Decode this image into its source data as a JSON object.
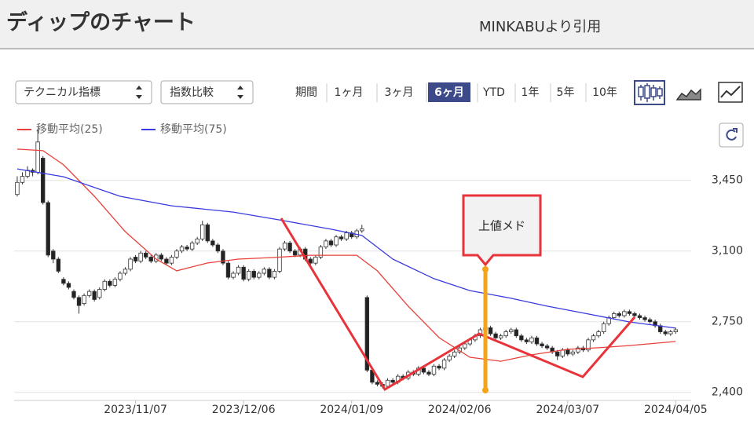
{
  "header": {
    "title": "ディップのチャート",
    "source": "MINKABUより引用"
  },
  "controls": {
    "dropdowns": [
      "テクニカル指標",
      "指数比較"
    ],
    "periods": [
      "期間",
      "1ヶ月",
      "3ヶ月",
      "6ヶ月",
      "YTD",
      "1年",
      "5年",
      "10年"
    ],
    "active_period": 3
  },
  "chart_data": {
    "type": "candlestick",
    "annotation": "上値メド",
    "ylim": [
      2360,
      3760
    ],
    "yticks": [
      {
        "value": 2400,
        "label": "2,400"
      },
      {
        "value": 2750,
        "label": "2,750"
      },
      {
        "value": 3100,
        "label": "3,100"
      },
      {
        "value": 3450,
        "label": "3,450"
      }
    ],
    "xlim": [
      -0.6,
      131
    ],
    "xticks": [
      {
        "value": 23,
        "label": "2023/11/07"
      },
      {
        "value": 44,
        "label": "2023/12/06"
      },
      {
        "value": 65,
        "label": "2024/01/09"
      },
      {
        "value": 86,
        "label": "2024/02/06"
      },
      {
        "value": 107,
        "label": "2024/03/07"
      },
      {
        "value": 128,
        "label": "2024/04/05"
      }
    ],
    "grid": true,
    "candles": [
      [
        3380,
        3470,
        3370,
        3440
      ],
      [
        3440,
        3490,
        3430,
        3470
      ],
      [
        3470,
        3520,
        3460,
        3500
      ],
      [
        3500,
        3510,
        3470,
        3490
      ],
      [
        3490,
        3700,
        3480,
        3640
      ],
      [
        3560,
        3570,
        3330,
        3340
      ],
      [
        3340,
        3350,
        3070,
        3080
      ],
      [
        3100,
        3110,
        3040,
        3060
      ],
      [
        3060,
        3070,
        2990,
        3000
      ],
      [
        2960,
        2970,
        2930,
        2940
      ],
      [
        2940,
        2950,
        2910,
        2920
      ],
      [
        2900,
        2910,
        2860,
        2870
      ],
      [
        2870,
        2880,
        2790,
        2830
      ],
      [
        2840,
        2890,
        2830,
        2880
      ],
      [
        2880,
        2910,
        2870,
        2900
      ],
      [
        2900,
        2910,
        2850,
        2860
      ],
      [
        2870,
        2920,
        2860,
        2910
      ],
      [
        2910,
        2960,
        2900,
        2950
      ],
      [
        2950,
        2960,
        2920,
        2930
      ],
      [
        2930,
        2970,
        2920,
        2960
      ],
      [
        2960,
        3000,
        2950,
        2990
      ],
      [
        2990,
        3020,
        2980,
        3010
      ],
      [
        3010,
        3070,
        3000,
        3060
      ],
      [
        3070,
        3080,
        3040,
        3050
      ],
      [
        3050,
        3100,
        3040,
        3090
      ],
      [
        3090,
        3100,
        3060,
        3070
      ],
      [
        3070,
        3080,
        3040,
        3050
      ],
      [
        3050,
        3090,
        3040,
        3080
      ],
      [
        3080,
        3090,
        3050,
        3060
      ],
      [
        3060,
        3070,
        3030,
        3040
      ],
      [
        3040,
        3080,
        3030,
        3070
      ],
      [
        3070,
        3110,
        3060,
        3100
      ],
      [
        3100,
        3130,
        3090,
        3120
      ],
      [
        3120,
        3130,
        3100,
        3110
      ],
      [
        3110,
        3150,
        3100,
        3140
      ],
      [
        3140,
        3170,
        3130,
        3160
      ],
      [
        3160,
        3250,
        3150,
        3230
      ],
      [
        3230,
        3240,
        3140,
        3150
      ],
      [
        3150,
        3160,
        3120,
        3130
      ],
      [
        3130,
        3140,
        3090,
        3100
      ],
      [
        3100,
        3110,
        3030,
        3040
      ],
      [
        3040,
        3050,
        2960,
        2970
      ],
      [
        2970,
        3000,
        2960,
        2990
      ],
      [
        2990,
        3030,
        2980,
        3020
      ],
      [
        3020,
        3030,
        2950,
        2960
      ],
      [
        2960,
        3010,
        2950,
        3000
      ],
      [
        3000,
        3010,
        2960,
        2970
      ],
      [
        2970,
        3000,
        2960,
        2990
      ],
      [
        2990,
        3020,
        2980,
        3010
      ],
      [
        3010,
        3020,
        2960,
        2970
      ],
      [
        2970,
        3010,
        2960,
        3000
      ],
      [
        3000,
        3120,
        2990,
        3110
      ],
      [
        3110,
        3150,
        3100,
        3140
      ],
      [
        3140,
        3150,
        3090,
        3100
      ],
      [
        3100,
        3110,
        3070,
        3080
      ],
      [
        3080,
        3120,
        3070,
        3110
      ],
      [
        3110,
        3120,
        3050,
        3060
      ],
      [
        3060,
        3070,
        3030,
        3040
      ],
      [
        3040,
        3080,
        3030,
        3070
      ],
      [
        3070,
        3130,
        3060,
        3120
      ],
      [
        3120,
        3160,
        3110,
        3150
      ],
      [
        3150,
        3160,
        3120,
        3130
      ],
      [
        3130,
        3180,
        3120,
        3170
      ],
      [
        3170,
        3180,
        3150,
        3160
      ],
      [
        3160,
        3200,
        3150,
        3190
      ],
      [
        3190,
        3200,
        3160,
        3170
      ],
      [
        3170,
        3210,
        3160,
        3200
      ],
      [
        3200,
        3230,
        3190,
        3210
      ],
      [
        2870,
        2880,
        2500,
        2510
      ],
      [
        2510,
        2520,
        2440,
        2450
      ],
      [
        2450,
        2460,
        2430,
        2440
      ],
      [
        2440,
        2450,
        2420,
        2430
      ],
      [
        2430,
        2470,
        2420,
        2460
      ],
      [
        2460,
        2470,
        2440,
        2450
      ],
      [
        2450,
        2490,
        2440,
        2480
      ],
      [
        2480,
        2490,
        2460,
        2470
      ],
      [
        2470,
        2510,
        2460,
        2500
      ],
      [
        2500,
        2510,
        2480,
        2490
      ],
      [
        2490,
        2530,
        2480,
        2520
      ],
      [
        2520,
        2530,
        2490,
        2500
      ],
      [
        2500,
        2510,
        2480,
        2490
      ],
      [
        2490,
        2540,
        2480,
        2530
      ],
      [
        2530,
        2540,
        2510,
        2520
      ],
      [
        2520,
        2570,
        2510,
        2560
      ],
      [
        2560,
        2590,
        2550,
        2580
      ],
      [
        2580,
        2610,
        2570,
        2600
      ],
      [
        2600,
        2630,
        2590,
        2620
      ],
      [
        2620,
        2650,
        2610,
        2640
      ],
      [
        2640,
        2670,
        2630,
        2660
      ],
      [
        2660,
        2690,
        2650,
        2680
      ],
      [
        2680,
        2720,
        2670,
        2710
      ],
      [
        2710,
        2740,
        2700,
        2720
      ],
      [
        2720,
        2730,
        2680,
        2690
      ],
      [
        2690,
        2700,
        2660,
        2670
      ],
      [
        2670,
        2690,
        2660,
        2680
      ],
      [
        2680,
        2710,
        2670,
        2700
      ],
      [
        2700,
        2720,
        2690,
        2710
      ],
      [
        2710,
        2720,
        2670,
        2680
      ],
      [
        2680,
        2690,
        2650,
        2660
      ],
      [
        2660,
        2670,
        2640,
        2650
      ],
      [
        2650,
        2680,
        2640,
        2670
      ],
      [
        2670,
        2680,
        2630,
        2640
      ],
      [
        2640,
        2650,
        2620,
        2630
      ],
      [
        2630,
        2640,
        2610,
        2620
      ],
      [
        2620,
        2630,
        2590,
        2600
      ],
      [
        2600,
        2610,
        2560,
        2580
      ],
      [
        2580,
        2620,
        2570,
        2610
      ],
      [
        2610,
        2620,
        2580,
        2590
      ],
      [
        2590,
        2610,
        2580,
        2600
      ],
      [
        2600,
        2630,
        2590,
        2620
      ],
      [
        2620,
        2630,
        2600,
        2610
      ],
      [
        2610,
        2670,
        2600,
        2660
      ],
      [
        2660,
        2690,
        2650,
        2680
      ],
      [
        2680,
        2710,
        2670,
        2700
      ],
      [
        2700,
        2750,
        2690,
        2740
      ],
      [
        2740,
        2780,
        2730,
        2770
      ],
      [
        2770,
        2800,
        2760,
        2790
      ],
      [
        2790,
        2800,
        2770,
        2780
      ],
      [
        2780,
        2810,
        2770,
        2800
      ],
      [
        2800,
        2810,
        2780,
        2790
      ],
      [
        2790,
        2800,
        2770,
        2780
      ],
      [
        2780,
        2790,
        2760,
        2770
      ],
      [
        2770,
        2780,
        2750,
        2760
      ],
      [
        2760,
        2770,
        2740,
        2750
      ],
      [
        2750,
        2760,
        2720,
        2730
      ],
      [
        2730,
        2740,
        2690,
        2700
      ],
      [
        2700,
        2710,
        2680,
        2690
      ],
      [
        2690,
        2710,
        2680,
        2700
      ],
      [
        2700,
        2720,
        2690,
        2710
      ]
    ],
    "series": [
      {
        "name": "移動平均(25)",
        "color": "#e8403a",
        "x": [
          0,
          5,
          9,
          15,
          21,
          27,
          31,
          37,
          43,
          50,
          57,
          66,
          70,
          76,
          82,
          88,
          94,
          100,
          107,
          113,
          119,
          128
        ],
        "values": [
          3605,
          3597,
          3527,
          3371,
          3196,
          3060,
          3002,
          3041,
          3060,
          3068,
          3079,
          3079,
          3002,
          2827,
          2671,
          2574,
          2554,
          2586,
          2613,
          2621,
          2632,
          2652
        ]
      },
      {
        "name": "移動平均(75)",
        "color": "#3a3ae0",
        "x": [
          0,
          9,
          20,
          30,
          42,
          51,
          61,
          67,
          73,
          81,
          88,
          96,
          103,
          111,
          119,
          128
        ],
        "values": [
          3507,
          3468,
          3371,
          3324,
          3293,
          3254,
          3208,
          3177,
          3060,
          2963,
          2904,
          2866,
          2827,
          2788,
          2749,
          2718
        ]
      }
    ]
  }
}
